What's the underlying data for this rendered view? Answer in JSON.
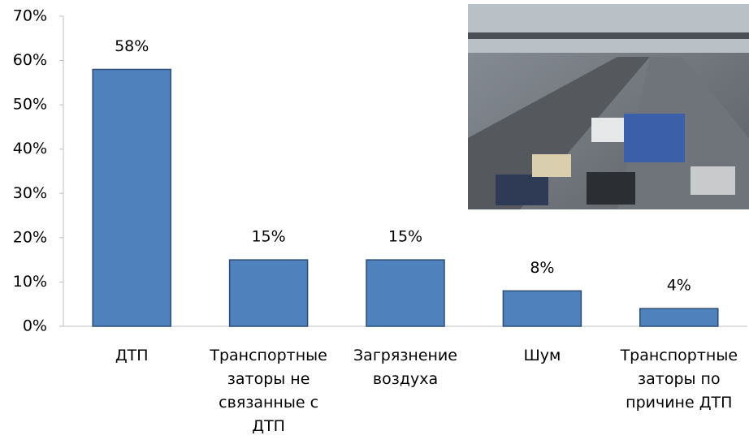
{
  "chart_data": {
    "type": "bar",
    "categories": [
      "ДТП",
      "Транспортные заторы не связанные с ДТП",
      "Загрязнение воздуха",
      "Шум",
      "Транспортные заторы по причине ДТП"
    ],
    "values": [
      58,
      15,
      15,
      8,
      4
    ],
    "value_labels": [
      "58%",
      "15%",
      "15%",
      "8%",
      "4%"
    ],
    "color": "#4f81bd",
    "ylim": [
      0,
      70
    ],
    "yticks": [
      {
        "value": 0,
        "label": "0%"
      },
      {
        "value": 10,
        "label": "10%"
      },
      {
        "value": 20,
        "label": "20%"
      },
      {
        "value": 30,
        "label": "30%"
      },
      {
        "value": 40,
        "label": "40%"
      },
      {
        "value": 50,
        "label": "50%"
      },
      {
        "value": 60,
        "label": "60%"
      },
      {
        "value": 70,
        "label": "70%"
      }
    ],
    "grid": false
  }
}
